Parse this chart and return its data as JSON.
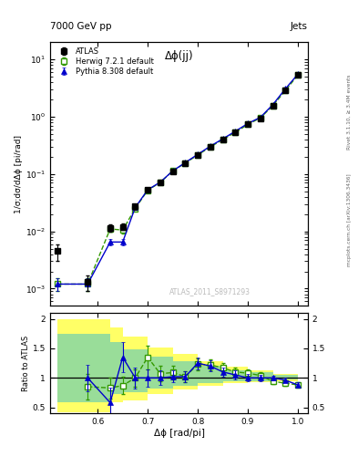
{
  "title_top": "7000 GeV pp",
  "title_right": "Jets",
  "plot_title": "Δϕ(jj)",
  "watermark": "ATLAS_2011_S8971293",
  "right_label_top": "Rivet 3.1.10, ≥ 3.4M events",
  "right_label_bottom": "mcplots.cern.ch [arXiv:1306.3436]",
  "ylabel_main": "1/σ;dσ/dΔϕ [pi/rad]",
  "ylabel_ratio": "Ratio to ATLAS",
  "xlabel": "Δϕ [rad/pi]",
  "atlas_x": [
    0.52,
    0.58,
    0.625,
    0.65,
    0.675,
    0.7,
    0.725,
    0.75,
    0.775,
    0.8,
    0.825,
    0.85,
    0.875,
    0.9,
    0.925,
    0.95,
    0.975,
    1.0
  ],
  "atlas_y": [
    0.0045,
    0.0013,
    0.0115,
    0.012,
    0.027,
    0.053,
    0.072,
    0.112,
    0.155,
    0.215,
    0.3,
    0.4,
    0.53,
    0.73,
    0.93,
    1.55,
    2.9,
    5.3
  ],
  "atlas_yerr_lo": [
    0.0015,
    0.0004,
    0.0015,
    0.0015,
    0.003,
    0.005,
    0.006,
    0.009,
    0.011,
    0.016,
    0.022,
    0.028,
    0.037,
    0.048,
    0.062,
    0.09,
    0.18,
    0.32
  ],
  "atlas_yerr_hi": [
    0.0015,
    0.0004,
    0.0015,
    0.0015,
    0.003,
    0.005,
    0.006,
    0.009,
    0.011,
    0.016,
    0.022,
    0.028,
    0.037,
    0.048,
    0.062,
    0.09,
    0.18,
    0.32
  ],
  "herwig_x": [
    0.52,
    0.58,
    0.625,
    0.65,
    0.675,
    0.7,
    0.725,
    0.75,
    0.775,
    0.8,
    0.825,
    0.85,
    0.875,
    0.9,
    0.925,
    0.95,
    0.975,
    1.0
  ],
  "herwig_y": [
    0.0012,
    0.0012,
    0.011,
    0.0105,
    0.025,
    0.052,
    0.071,
    0.113,
    0.155,
    0.215,
    0.295,
    0.4,
    0.53,
    0.73,
    0.95,
    1.55,
    2.85,
    5.3
  ],
  "herwig_yerr": [
    0.0003,
    0.0003,
    0.0012,
    0.0012,
    0.0025,
    0.0045,
    0.006,
    0.009,
    0.011,
    0.015,
    0.021,
    0.027,
    0.036,
    0.046,
    0.062,
    0.085,
    0.17,
    0.3
  ],
  "pythia_x": [
    0.52,
    0.58,
    0.625,
    0.65,
    0.675,
    0.7,
    0.725,
    0.75,
    0.775,
    0.8,
    0.825,
    0.85,
    0.875,
    0.9,
    0.925,
    0.95,
    0.975,
    1.0
  ],
  "pythia_y": [
    0.0012,
    0.0012,
    0.0065,
    0.0065,
    0.026,
    0.053,
    0.072,
    0.113,
    0.158,
    0.22,
    0.305,
    0.41,
    0.555,
    0.76,
    0.97,
    1.62,
    3.05,
    5.5
  ],
  "pythia_yerr": [
    0.0003,
    0.0003,
    0.0008,
    0.0008,
    0.0025,
    0.0045,
    0.006,
    0.009,
    0.011,
    0.015,
    0.021,
    0.027,
    0.036,
    0.046,
    0.062,
    0.085,
    0.17,
    0.3
  ],
  "herwig_ratio_x": [
    0.58,
    0.625,
    0.65,
    0.675,
    0.7,
    0.725,
    0.75,
    0.775,
    0.8,
    0.825,
    0.85,
    0.875,
    0.9,
    0.925,
    0.95,
    0.975,
    1.0
  ],
  "herwig_ratio_y": [
    0.85,
    0.83,
    0.87,
    1.0,
    1.35,
    1.07,
    1.09,
    1.02,
    1.23,
    1.22,
    1.17,
    1.1,
    1.08,
    1.04,
    0.94,
    0.91,
    0.88
  ],
  "herwig_ratio_err": [
    0.22,
    0.18,
    0.15,
    0.15,
    0.2,
    0.13,
    0.11,
    0.09,
    0.1,
    0.09,
    0.08,
    0.07,
    0.07,
    0.06,
    0.05,
    0.04,
    0.04
  ],
  "pythia_ratio_x": [
    0.58,
    0.625,
    0.65,
    0.675,
    0.7,
    0.725,
    0.75,
    0.775,
    0.8,
    0.825,
    0.85,
    0.875,
    0.9,
    0.925,
    0.95,
    0.975,
    1.0
  ],
  "pythia_ratio_y": [
    1.0,
    0.58,
    1.35,
    1.0,
    1.0,
    1.0,
    1.02,
    1.02,
    1.25,
    1.2,
    1.1,
    1.05,
    1.0,
    1.0,
    1.0,
    0.96,
    0.88
  ],
  "pythia_ratio_err": [
    0.22,
    0.25,
    0.25,
    0.18,
    0.15,
    0.12,
    0.1,
    0.09,
    0.1,
    0.09,
    0.08,
    0.07,
    0.06,
    0.05,
    0.04,
    0.04,
    0.04
  ],
  "band_x_edges": [
    0.52,
    0.58,
    0.625,
    0.65,
    0.7,
    0.75,
    0.8,
    0.85,
    0.9,
    0.95,
    1.0
  ],
  "yellow_lo": [
    0.42,
    0.42,
    0.58,
    0.62,
    0.72,
    0.8,
    0.87,
    0.91,
    0.93,
    0.95,
    0.97
  ],
  "yellow_hi": [
    2.0,
    2.0,
    1.85,
    1.7,
    1.52,
    1.4,
    1.28,
    1.19,
    1.12,
    1.07,
    1.05
  ],
  "green_lo": [
    0.58,
    0.58,
    0.72,
    0.76,
    0.82,
    0.87,
    0.91,
    0.94,
    0.95,
    0.97,
    0.98
  ],
  "green_hi": [
    1.75,
    1.75,
    1.6,
    1.48,
    1.36,
    1.28,
    1.2,
    1.13,
    1.09,
    1.05,
    1.04
  ],
  "color_atlas": "#000000",
  "color_herwig": "#339900",
  "color_pythia": "#0000cc",
  "color_yellow": "#ffff66",
  "color_green": "#99dd99",
  "main_ylim_lo": 0.0005,
  "main_ylim_hi": 20.0,
  "ratio_ylim_lo": 0.4,
  "ratio_ylim_hi": 2.1,
  "xlim_lo": 0.505,
  "xlim_hi": 1.02,
  "ratio_yticks": [
    0.5,
    1.0,
    1.5,
    2.0
  ],
  "ratio_yticklabels": [
    "0.5",
    "1",
    "1.5",
    "2"
  ]
}
